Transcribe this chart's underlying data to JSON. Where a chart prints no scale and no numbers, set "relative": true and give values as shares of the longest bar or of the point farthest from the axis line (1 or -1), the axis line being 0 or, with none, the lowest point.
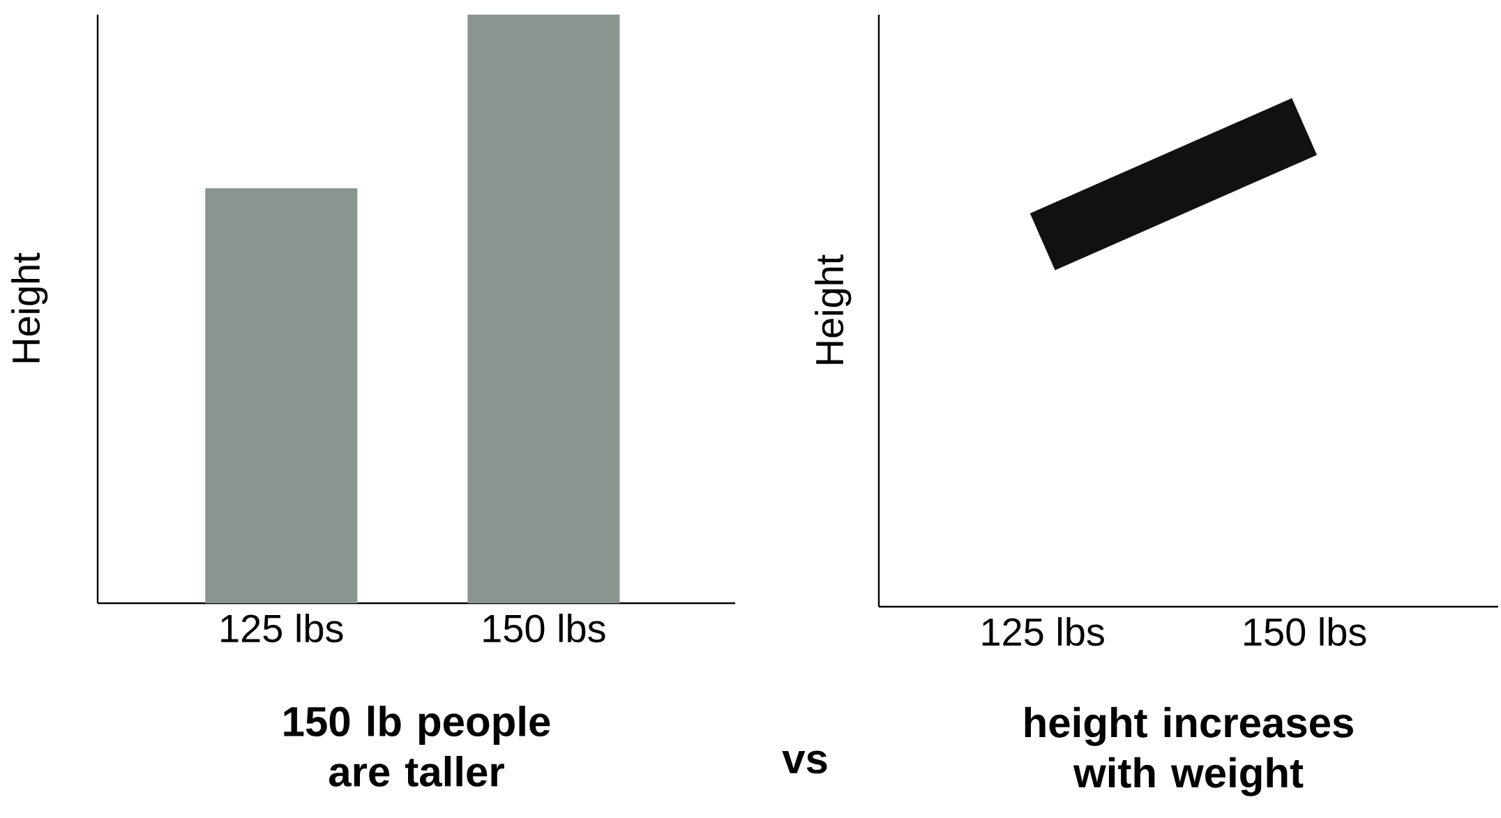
{
  "chart_data": [
    {
      "type": "bar",
      "title": "150 lb people are taller",
      "ylabel": "Height",
      "categories": [
        "125 lbs",
        "150 lbs"
      ],
      "values": [
        0.705,
        1
      ],
      "color": "#8a9590",
      "relative": true,
      "annotations": [
        "vs"
      ]
    },
    {
      "type": "line",
      "title": "height increases with weight",
      "ylabel": "Height",
      "categories": [
        "125 lbs",
        "150 lbs"
      ],
      "values": [
        0.76,
        1
      ],
      "color": "#111111",
      "relative": true
    }
  ]
}
